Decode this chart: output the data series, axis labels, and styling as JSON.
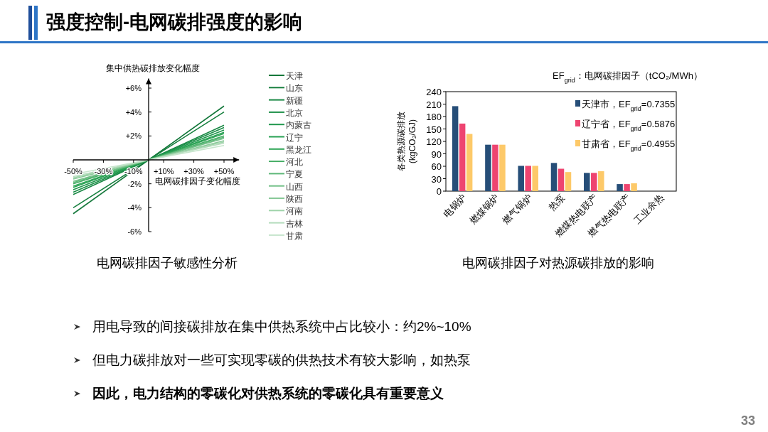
{
  "chart_data": [
    {
      "type": "line",
      "title": "电网碳排因子敏感性分析",
      "xlabel": "电网碳排因子变化幅度",
      "ylabel": "集中供热碳排放变化幅度",
      "x": [
        -50,
        0,
        50
      ],
      "xlim": [
        -50,
        60
      ],
      "ylim": [
        -6,
        6.8
      ],
      "xticks": [
        {
          "value": -50,
          "label": "-50%"
        },
        {
          "value": -30,
          "label": "-30%"
        },
        {
          "value": -10,
          "label": "-10%"
        },
        {
          "value": 10,
          "label": "+10%"
        },
        {
          "value": 30,
          "label": "+30%"
        },
        {
          "value": 50,
          "label": "+50%"
        }
      ],
      "yticks": [
        {
          "value": 6,
          "label": "+6%"
        },
        {
          "value": 4,
          "label": "+4%"
        },
        {
          "value": 2,
          "label": "+2%"
        },
        {
          "value": -2,
          "label": "-2%"
        },
        {
          "value": -4,
          "label": "-4%"
        },
        {
          "value": -6,
          "label": "-6%"
        }
      ],
      "legend": "right",
      "series": [
        {
          "name": "天津",
          "color": "#13773a",
          "values": [
            -4.5,
            0,
            4.5
          ]
        },
        {
          "name": "山东",
          "color": "#167f3e",
          "values": [
            -4.0,
            0,
            4.0
          ]
        },
        {
          "name": "新疆",
          "color": "#198744",
          "values": [
            -2.9,
            0,
            2.9
          ]
        },
        {
          "name": "北京",
          "color": "#1c8f48",
          "values": [
            -2.7,
            0,
            2.7
          ]
        },
        {
          "name": "内蒙古",
          "color": "#20974d",
          "values": [
            -2.5,
            0,
            2.5
          ]
        },
        {
          "name": "辽宁",
          "color": "#27a052",
          "values": [
            -2.3,
            0,
            2.3
          ]
        },
        {
          "name": "黑龙江",
          "color": "#2ea556",
          "values": [
            -2.2,
            0,
            2.2
          ]
        },
        {
          "name": "河北",
          "color": "#45ad65",
          "values": [
            -2.0,
            0,
            2.0
          ]
        },
        {
          "name": "宁夏",
          "color": "#5cb777",
          "values": [
            -1.9,
            0,
            1.9
          ]
        },
        {
          "name": "山西",
          "color": "#72c087",
          "values": [
            -1.8,
            0,
            1.8
          ]
        },
        {
          "name": "陕西",
          "color": "#88c998",
          "values": [
            -1.6,
            0,
            1.6
          ]
        },
        {
          "name": "河南",
          "color": "#9fd3aa",
          "values": [
            -1.5,
            0,
            1.5
          ]
        },
        {
          "name": "吉林",
          "color": "#b4dcbc",
          "values": [
            -1.4,
            0,
            1.4
          ]
        },
        {
          "name": "甘肃",
          "color": "#c6e5cc",
          "values": [
            -1.2,
            0,
            1.2
          ]
        }
      ]
    },
    {
      "type": "bar",
      "title": "电网碳排因子对热源碳排放的影响",
      "ylabel": "各类热源碳排放\n(kgCO₂/GJ)",
      "categories": [
        "电锅炉",
        "燃煤锅炉",
        "燃气锅炉",
        "热泵",
        "燃煤热电联产",
        "燃气热电联产",
        "工业余热"
      ],
      "ylim": [
        0,
        240
      ],
      "yticks": [
        0,
        30,
        60,
        90,
        120,
        150,
        180,
        210,
        240
      ],
      "legend": "top right",
      "annotations": [
        "EF$_{grid}$：电网碳排因子（tCO₂/MWh）"
      ],
      "series": [
        {
          "name": "天津市，EF$_{grid}$=0.7355",
          "color": "#264e78",
          "values": [
            205,
            112,
            61,
            68,
            44,
            17,
            0
          ]
        },
        {
          "name": "辽宁省，EF$_{grid}$=0.5876",
          "color": "#ee4470",
          "values": [
            163,
            112,
            61,
            54,
            44,
            17,
            0
          ]
        },
        {
          "name": "甘肃省，EF$_{grid}$=0.4955",
          "color": "#fdc969",
          "values": [
            138,
            112,
            61,
            46,
            48,
            19,
            0
          ]
        }
      ]
    },
    {
      "type": "other",
      "title": "强度控制-电网碳排强度的影响",
      "annotations": [
        "用电导致的间接碳排放在集中供热系统中占比较小：约2%~10%",
        "但电力碳排放对一些可实现零碳的供热技术有较大影响，如热泵",
        "因此，电力结构的零碳化对供热系统的零碳化具有重要意义",
        "33"
      ]
    }
  ]
}
